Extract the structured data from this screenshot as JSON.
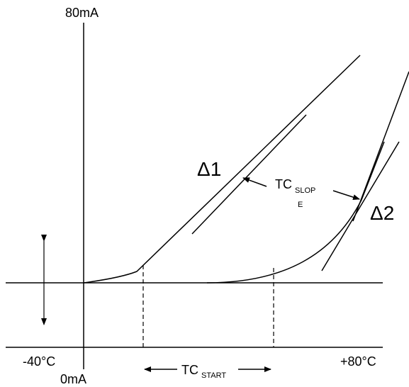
{
  "labels": {
    "y_top": "80mA",
    "y_bottom": "0mA",
    "x_left": "-40°C",
    "x_right": "+80°C",
    "delta1": "Δ1",
    "delta2": "Δ2",
    "tc_slope_main": "TC",
    "tc_slope_sub1": "SLOP",
    "tc_slope_sub2": "E",
    "tc_start_main": "TC",
    "tc_start_sub": "START"
  },
  "colors": {
    "stroke": "#000000",
    "background": "#ffffff"
  }
}
